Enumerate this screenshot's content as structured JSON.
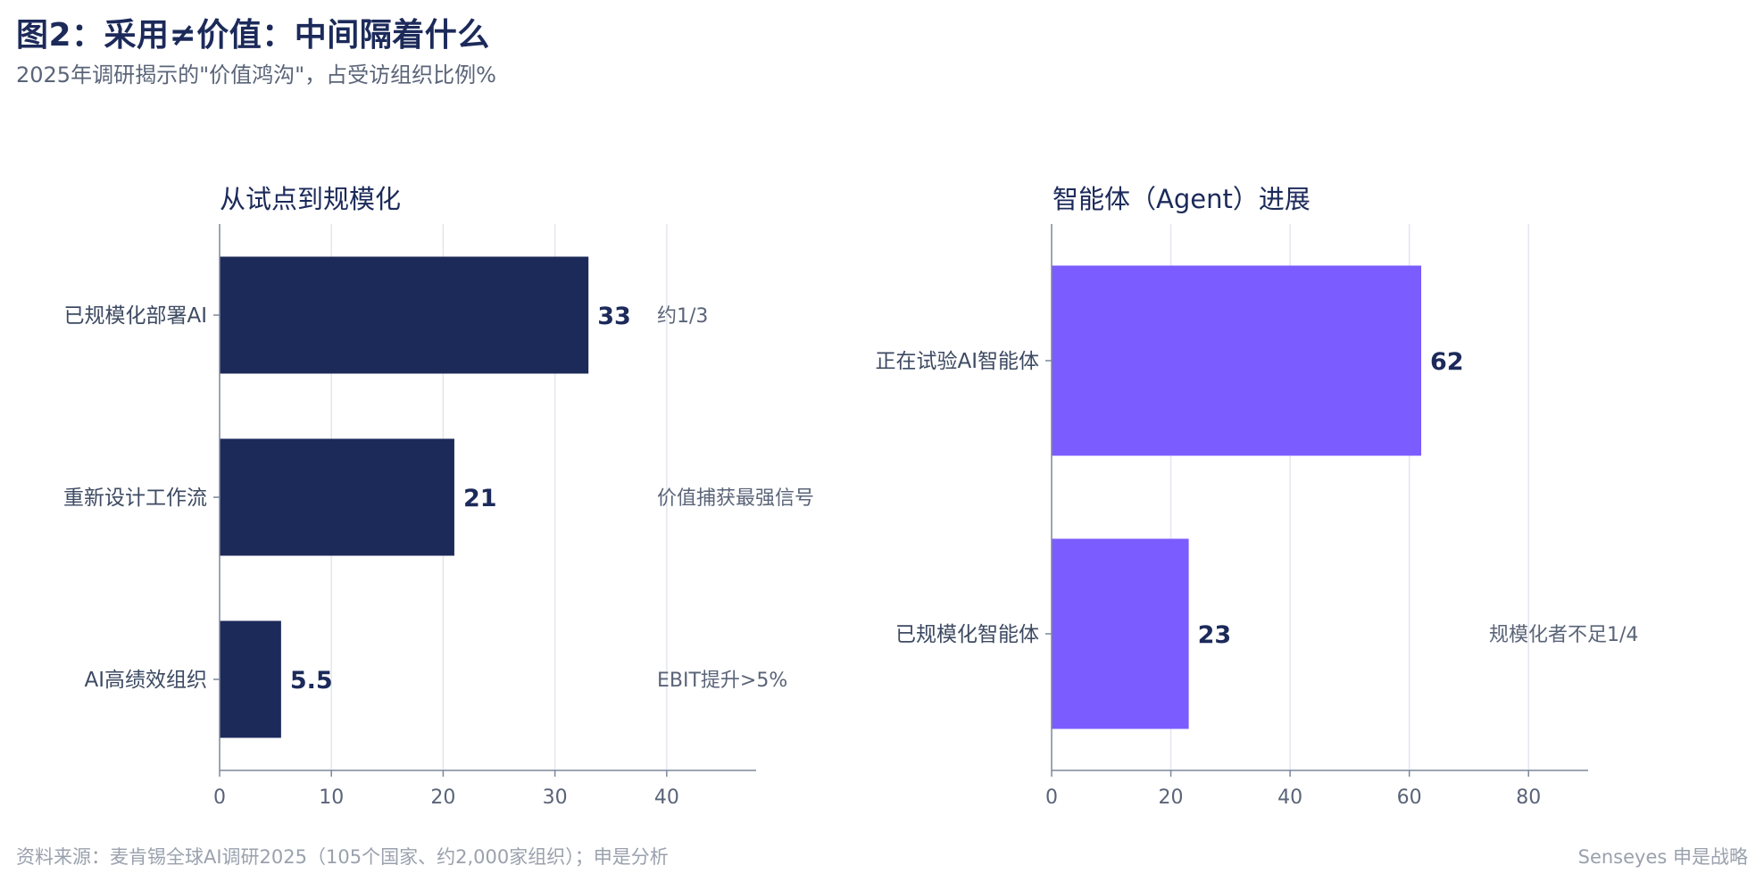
{
  "header": {
    "title": "图2：采用≠价值：中间隔着什么",
    "subtitle": "2025年调研揭示的\"价值鸿沟\"，占受访组织比例%"
  },
  "footer": {
    "source": "资料来源：麦肯锡全球AI调研2025（105个国家、约2,000家组织）；申是分析",
    "brand": "Senseyes 申是战略"
  },
  "chart_data": [
    {
      "type": "bar",
      "orientation": "horizontal",
      "title": "从试点到规模化",
      "categories": [
        "已规模化部署AI",
        "重新设计工作流",
        "AI高绩效组织"
      ],
      "values": [
        33,
        21,
        5.5
      ],
      "value_labels": [
        "33",
        "21",
        "5.5"
      ],
      "annotations": [
        "约1/3",
        "价值捕获最强信号",
        "EBIT提升>5%"
      ],
      "xlim": [
        0,
        48
      ],
      "xticks": [
        0,
        10,
        20,
        30,
        40
      ],
      "grid": true,
      "color": "#1c2a5a"
    },
    {
      "type": "bar",
      "orientation": "horizontal",
      "title": "智能体（Agent）进展",
      "categories": [
        "正在试验AI智能体",
        "已规模化智能体"
      ],
      "values": [
        62,
        23
      ],
      "value_labels": [
        "62",
        "23"
      ],
      "annotations": [
        "",
        "规模化者不足1/4"
      ],
      "xlim": [
        0,
        90
      ],
      "xticks": [
        0,
        20,
        40,
        60,
        80
      ],
      "grid": true,
      "color": "#7b5cff"
    }
  ]
}
